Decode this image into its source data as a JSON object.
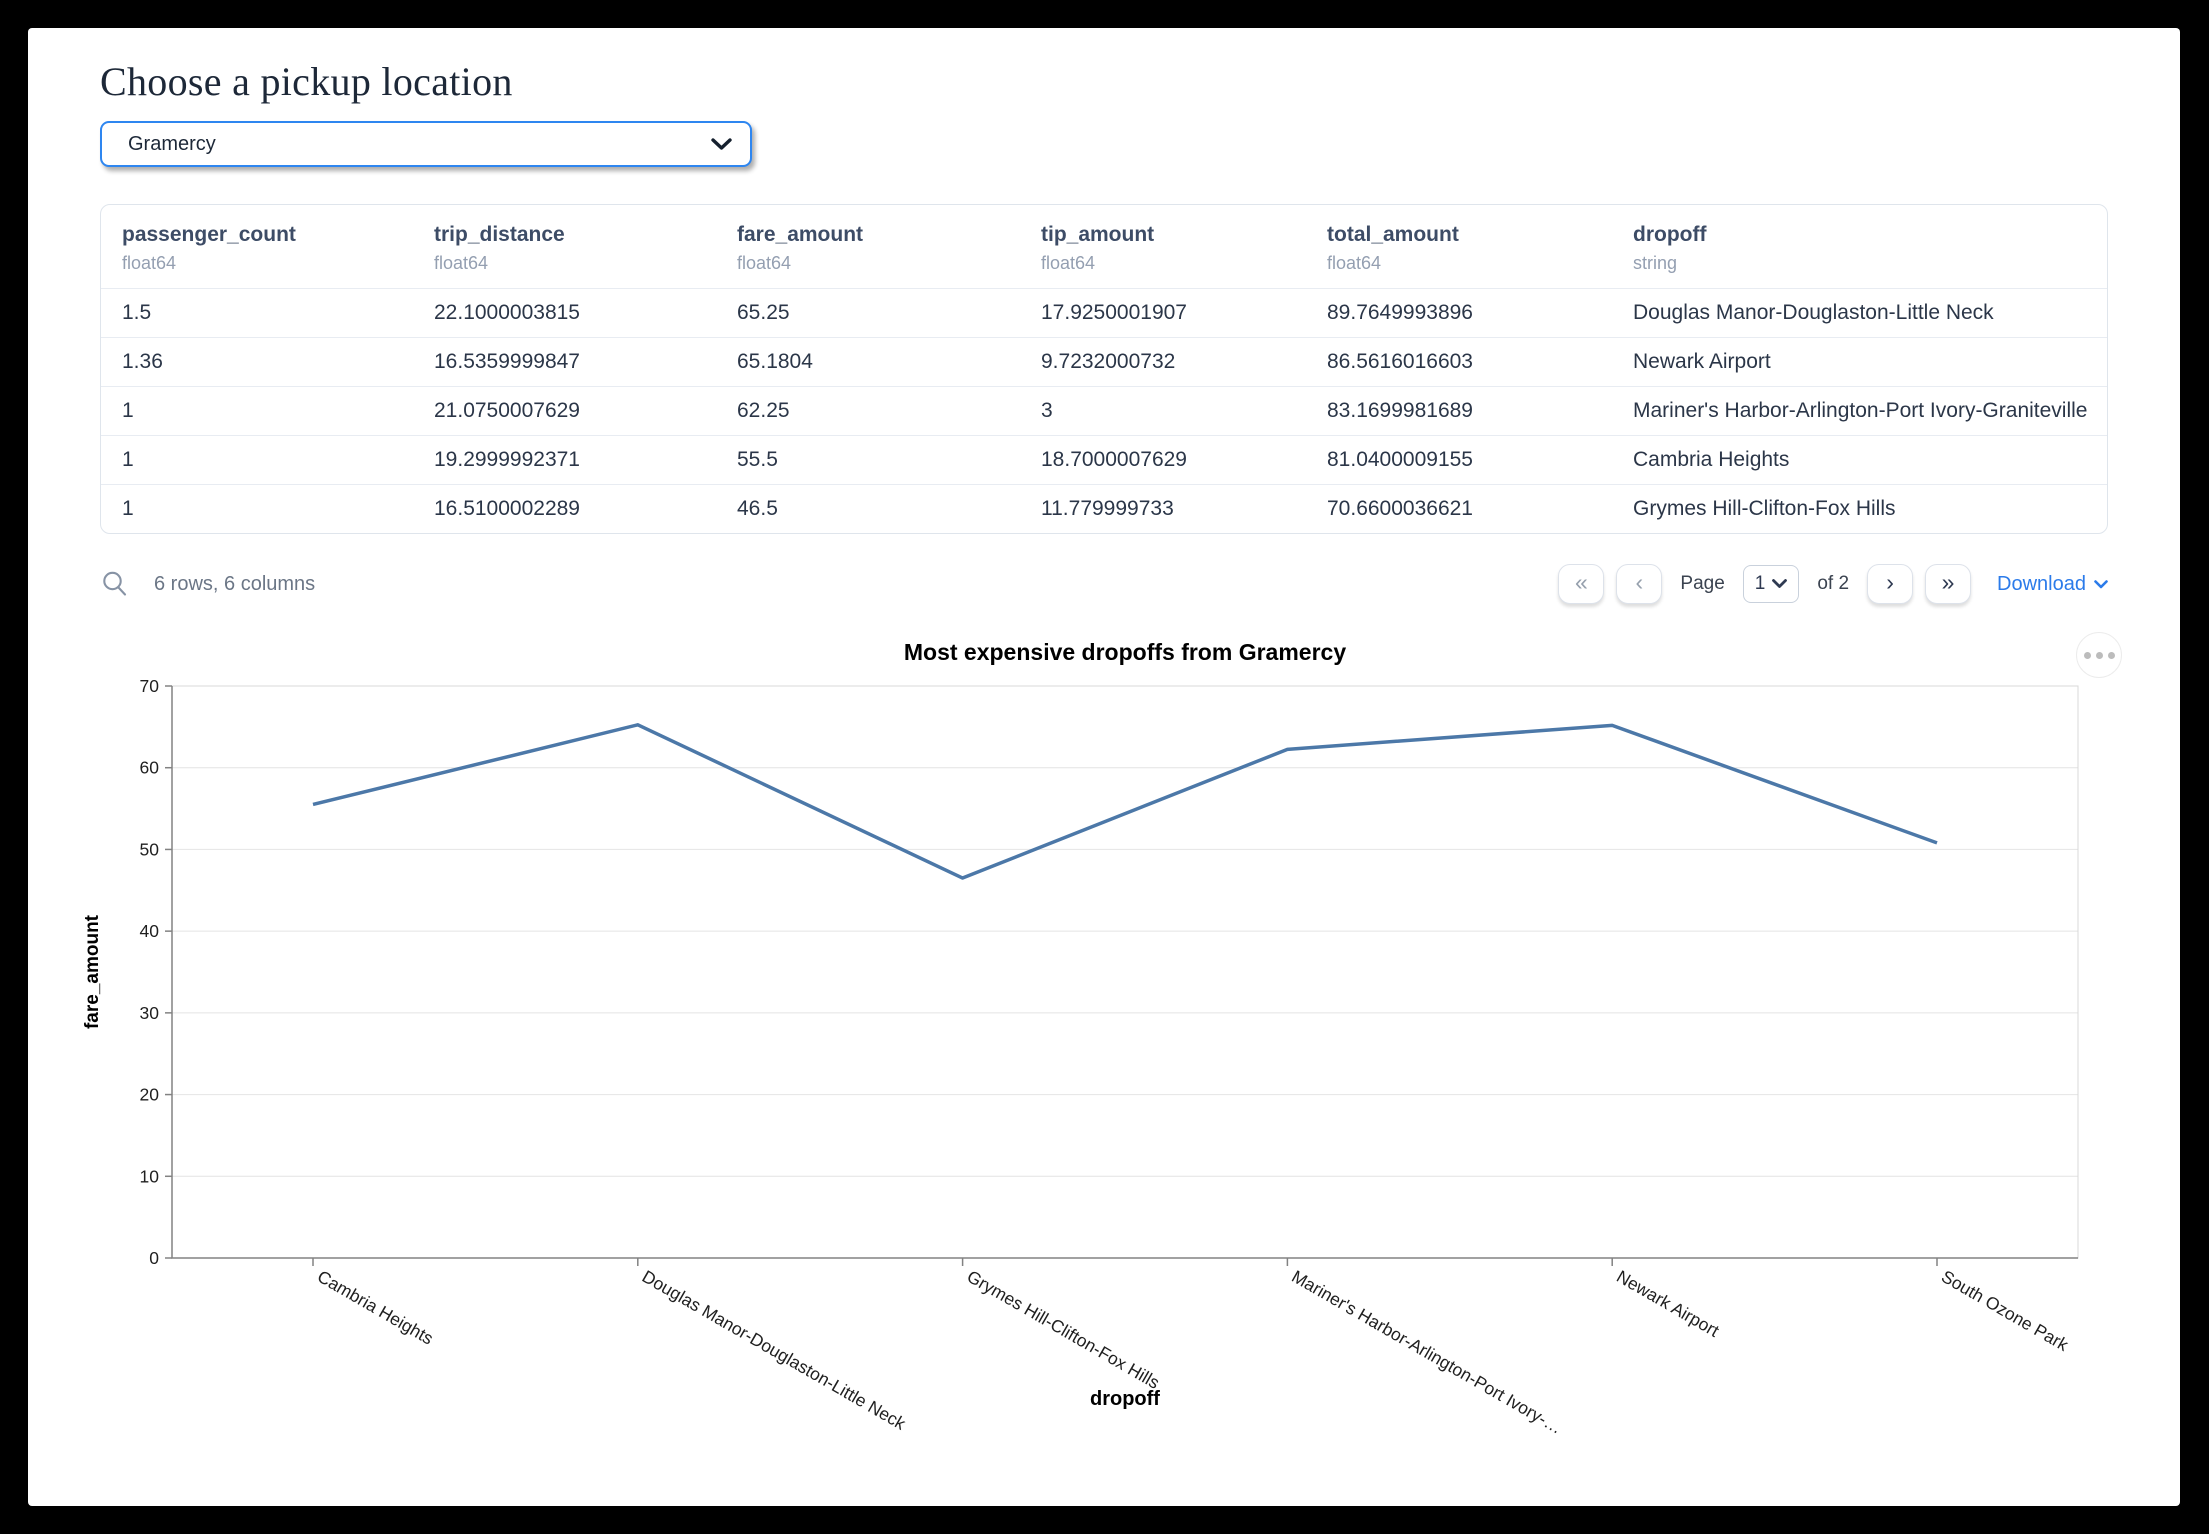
{
  "header": {
    "title": "Choose a pickup location"
  },
  "pickup_select": {
    "value": "Gramercy"
  },
  "table": {
    "columns": [
      {
        "name": "passenger_count",
        "dtype": "float64"
      },
      {
        "name": "trip_distance",
        "dtype": "float64"
      },
      {
        "name": "fare_amount",
        "dtype": "float64"
      },
      {
        "name": "tip_amount",
        "dtype": "float64"
      },
      {
        "name": "total_amount",
        "dtype": "float64"
      },
      {
        "name": "dropoff",
        "dtype": "string"
      }
    ],
    "rows": [
      [
        "1.5",
        "22.1000003815",
        "65.25",
        "17.9250001907",
        "89.7649993896",
        "Douglas Manor-Douglaston-Little Neck"
      ],
      [
        "1.36",
        "16.5359999847",
        "65.1804",
        "9.7232000732",
        "86.5616016603",
        "Newark Airport"
      ],
      [
        "1",
        "21.0750007629",
        "62.25",
        "3",
        "83.1699981689",
        "Mariner's Harbor-Arlington-Port Ivory-Graniteville"
      ],
      [
        "1",
        "19.2999992371",
        "55.5",
        "18.7000007629",
        "81.0400009155",
        "Cambria Heights"
      ],
      [
        "1",
        "16.5100002289",
        "46.5",
        "11.779999733",
        "70.6600036621",
        "Grymes Hill-Clifton-Fox Hills"
      ]
    ]
  },
  "table_footer": {
    "summary": "6 rows, 6 columns",
    "page_label": "Page",
    "page_value": "1",
    "page_of": "of 2",
    "download_label": "Download",
    "icons": {
      "first_page": "«",
      "prev_page": "‹",
      "next_page": "›",
      "last_page": "»"
    }
  },
  "chart_data": {
    "type": "line",
    "title": "Most expensive dropoffs from Gramercy",
    "xlabel": "dropoff",
    "ylabel": "fare_amount",
    "categories": [
      "Cambria Heights",
      "Douglas Manor-Douglaston-Little Neck",
      "Grymes Hill-Clifton-Fox Hills",
      "Mariner's Harbor-Arlington-Port Ivory-…",
      "Newark Airport",
      "South Ozone Park"
    ],
    "values": [
      55.5,
      65.25,
      46.5,
      62.25,
      65.18,
      50.8
    ],
    "ylim": [
      0,
      70
    ],
    "yticks": [
      0,
      10,
      20,
      30,
      40,
      50,
      60,
      70
    ],
    "grid": true,
    "legend": "none",
    "line_color": "#4c78a8"
  },
  "colors": {
    "accent_blue": "#2e86f0",
    "link_blue": "#2b7bea",
    "line_blue": "#4c78a8",
    "header_text": "#3d4c66",
    "cell_text": "#2b3648",
    "muted_text": "#6b7686"
  }
}
